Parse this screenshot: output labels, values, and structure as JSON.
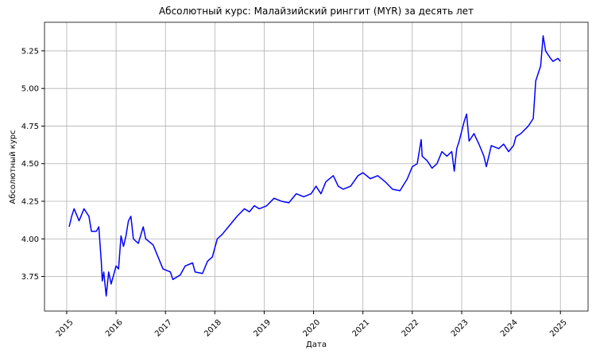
{
  "chart_data": {
    "type": "line",
    "title": "Абсолютный курс: Малайзийский ринггит (MYR) за десять лет",
    "xlabel": "Дата",
    "ylabel": "Абсолютный курс",
    "color": "#0000ff",
    "label_color": "#0000ff",
    "grid": true,
    "x": [
      2015.05,
      2015.1,
      2015.15,
      2015.25,
      2015.35,
      2015.45,
      2015.5,
      2015.6,
      2015.65,
      2015.7,
      2015.72,
      2015.75,
      2015.8,
      2015.85,
      2015.9,
      2016.0,
      2016.05,
      2016.1,
      2016.15,
      2016.2,
      2016.25,
      2016.3,
      2016.35,
      2016.45,
      2016.55,
      2016.6,
      2016.75,
      2016.85,
      2016.95,
      2017.1,
      2017.15,
      2017.3,
      2017.4,
      2017.55,
      2017.6,
      2017.75,
      2017.85,
      2017.95,
      2018.05,
      2018.15,
      2018.3,
      2018.45,
      2018.6,
      2018.7,
      2018.8,
      2018.9,
      2019.05,
      2019.2,
      2019.35,
      2019.5,
      2019.65,
      2019.8,
      2019.95,
      2020.05,
      2020.15,
      2020.25,
      2020.4,
      2020.5,
      2020.6,
      2020.75,
      2020.9,
      2021.0,
      2021.15,
      2021.3,
      2021.45,
      2021.6,
      2021.75,
      2021.9,
      2022.0,
      2022.1,
      2022.18,
      2022.2,
      2022.3,
      2022.4,
      2022.5,
      2022.6,
      2022.7,
      2022.8,
      2022.85,
      2022.9,
      2022.95,
      2023.05,
      2023.1,
      2023.15,
      2023.25,
      2023.35,
      2023.45,
      2023.5,
      2023.6,
      2023.75,
      2023.85,
      2023.95,
      2024.05,
      2024.1,
      2024.2,
      2024.35,
      2024.45,
      2024.5,
      2024.55,
      2024.6,
      2024.65,
      2024.7,
      2024.8,
      2024.85,
      2024.95,
      2025.0
    ],
    "values": [
      4.08,
      4.15,
      4.2,
      4.12,
      4.2,
      4.15,
      4.05,
      4.05,
      4.08,
      3.85,
      3.72,
      3.78,
      3.62,
      3.78,
      3.7,
      3.82,
      3.8,
      4.02,
      3.95,
      4.02,
      4.12,
      4.15,
      4.0,
      3.97,
      4.08,
      4.0,
      3.96,
      3.88,
      3.8,
      3.78,
      3.73,
      3.76,
      3.82,
      3.84,
      3.78,
      3.77,
      3.85,
      3.88,
      4.0,
      4.03,
      4.09,
      4.15,
      4.2,
      4.18,
      4.22,
      4.2,
      4.22,
      4.27,
      4.25,
      4.24,
      4.3,
      4.28,
      4.3,
      4.35,
      4.3,
      4.38,
      4.42,
      4.35,
      4.33,
      4.35,
      4.42,
      4.44,
      4.4,
      4.42,
      4.38,
      4.33,
      4.32,
      4.4,
      4.48,
      4.5,
      4.66,
      4.55,
      4.52,
      4.47,
      4.5,
      4.58,
      4.55,
      4.58,
      4.45,
      4.6,
      4.65,
      4.78,
      4.83,
      4.65,
      4.7,
      4.63,
      4.55,
      4.48,
      4.62,
      4.6,
      4.63,
      4.58,
      4.62,
      4.68,
      4.7,
      4.75,
      4.8,
      5.05,
      5.1,
      5.15,
      5.35,
      5.25,
      5.2,
      5.18,
      5.2,
      5.18
    ],
    "xlim": [
      2014.55,
      2025.56
    ],
    "ylim": [
      3.52,
      5.44
    ],
    "xticks": [
      2015,
      2016,
      2017,
      2018,
      2019,
      2020,
      2021,
      2022,
      2023,
      2024,
      2025
    ],
    "yticks": [
      3.75,
      {
        "value": 4.0,
        "label": "4.00"
      },
      4.25,
      {
        "value": 4.5,
        "label": "4.50"
      },
      4.75,
      {
        "value": 5.0,
        "label": "5.00"
      },
      5.25
    ]
  }
}
